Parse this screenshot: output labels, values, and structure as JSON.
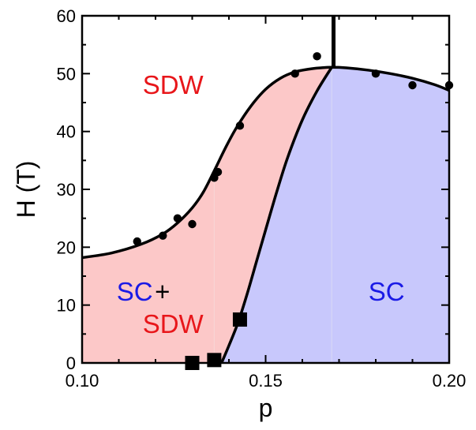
{
  "chart_data": {
    "type": "scatter",
    "xlabel": "p",
    "ylabel": "H (T)",
    "xlim": [
      0.1,
      0.2
    ],
    "ylim": [
      0,
      60
    ],
    "x_ticks": [
      0.1,
      0.15,
      0.2
    ],
    "x_tick_labels": [
      "0.10",
      "0.15",
      "0.20"
    ],
    "y_ticks": [
      0,
      10,
      20,
      30,
      40,
      50,
      60
    ],
    "y_tick_labels": [
      "0",
      "10",
      "20",
      "30",
      "40",
      "50",
      "60"
    ],
    "grid": false,
    "colors": {
      "sdw_fill": "#fcc8c8",
      "sc_fill": "#c8c8fc",
      "sdw_text": "#e8161a",
      "sc_text": "#1a1ae6",
      "plus_text": "#000000",
      "line": "#000000",
      "markers": "#000000"
    },
    "region_labels": [
      {
        "text": "SDW",
        "color": "#e8161a",
        "x": 0.1165,
        "y": 46.5
      },
      {
        "text": "SC",
        "color": "#1a1ae6",
        "x": 0.1094,
        "y": 10.8
      },
      {
        "text": "+",
        "color": "#000000",
        "x": 0.1198,
        "y": 10.8
      },
      {
        "text": "SDW",
        "color": "#e8161a",
        "x": 0.1165,
        "y": 5.2
      },
      {
        "text": "SC",
        "color": "#1a1ae6",
        "x": 0.178,
        "y": 10.8
      }
    ],
    "upper_boundary": {
      "x": [
        0.1,
        0.108,
        0.116,
        0.122,
        0.126,
        0.13,
        0.133,
        0.136,
        0.139,
        0.142,
        0.146,
        0.15,
        0.154,
        0.158,
        0.162,
        0.165,
        0.168,
        0.172,
        0.178,
        0.184,
        0.19,
        0.196,
        0.2
      ],
      "y": [
        18.2,
        19.0,
        20.5,
        22.3,
        24.2,
        26.8,
        29.5,
        33.2,
        37.1,
        40.6,
        44.4,
        47.3,
        49.2,
        50.3,
        50.8,
        51.0,
        51.1,
        51.0,
        50.6,
        50.0,
        49.2,
        48.1,
        47.1
      ]
    },
    "sc_boundary": {
      "x": [
        0.138,
        0.14,
        0.1425,
        0.145,
        0.1475,
        0.15,
        0.153,
        0.156,
        0.16,
        0.164,
        0.168
      ],
      "y": [
        0.0,
        3.0,
        7.0,
        12.0,
        17.5,
        23.0,
        29.5,
        35.5,
        42.0,
        47.0,
        51.1
      ]
    },
    "vertical_line": {
      "x": 0.1685,
      "y_from": 51.1,
      "y_to": 60
    },
    "circle_points": {
      "x": [
        0.115,
        0.122,
        0.126,
        0.13,
        0.136,
        0.137,
        0.143,
        0.158,
        0.164,
        0.18,
        0.19,
        0.2
      ],
      "y": [
        21.0,
        22.0,
        25.0,
        24.0,
        32.0,
        33.0,
        41.0,
        50.0,
        53.0,
        50.0,
        48.0,
        48.0
      ]
    },
    "square_points": {
      "x": [
        0.13,
        0.136,
        0.143
      ],
      "y": [
        0.0,
        0.5,
        7.5
      ]
    }
  }
}
